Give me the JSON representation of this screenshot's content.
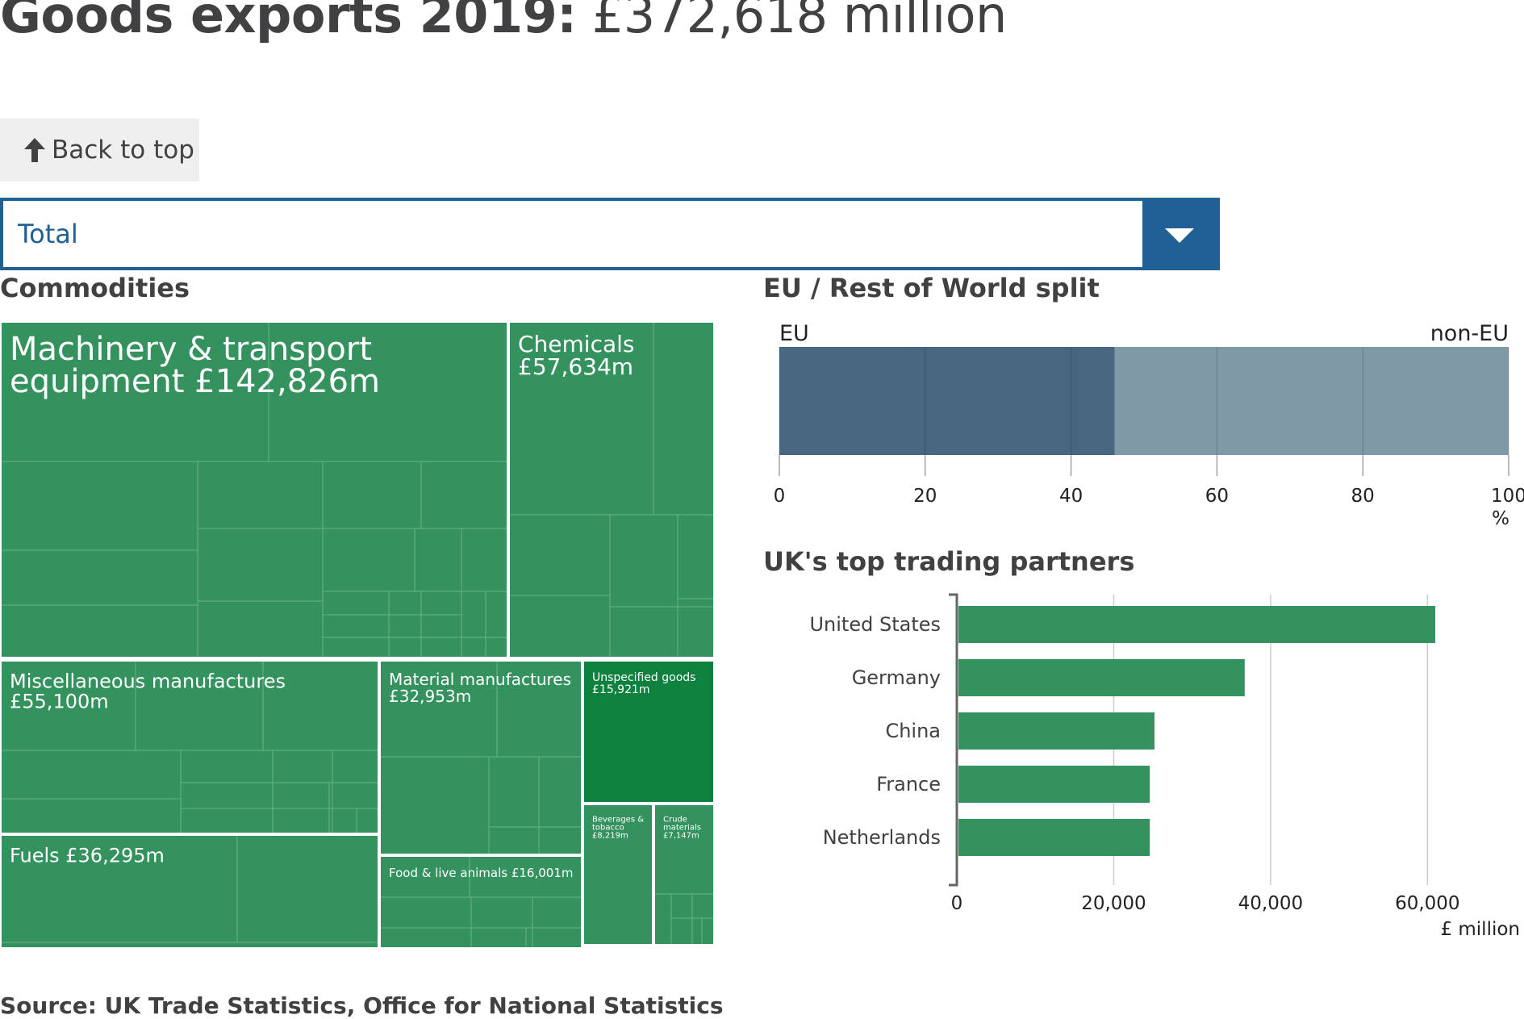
{
  "header": {
    "title_strong": "Goods exports 2019:",
    "title_value": "£372,618 million"
  },
  "back_to_top": {
    "label": "Back to top",
    "icon": "arrow-up-icon"
  },
  "dropdown": {
    "selected": "Total",
    "icon": "chevron-down-icon"
  },
  "colors": {
    "treemap_fill": "#34925e",
    "treemap_highlight": "#0f813f",
    "eu": "#46677f",
    "non_eu": "#7f9aa6",
    "partner_bar": "#34925e",
    "dropdown_accent": "#206095"
  },
  "commodities": {
    "title": "Commodities",
    "chart_data": {
      "type": "treemap",
      "items": [
        {
          "name": "Machinery & transport equipment",
          "label": "Machinery & transport equipment £142,826m",
          "value": 142826
        },
        {
          "name": "Chemicals",
          "label": "Chemicals £57,634m",
          "value": 57634
        },
        {
          "name": "Miscellaneous manufactures",
          "label": "Miscellaneous manufactures £55,100m",
          "value": 55100
        },
        {
          "name": "Fuels",
          "label": "Fuels £36,295m",
          "value": 36295
        },
        {
          "name": "Material manufactures",
          "label": "Material manufactures £32,953m",
          "value": 32953
        },
        {
          "name": "Food & live animals",
          "label": "Food & live animals £16,001m",
          "value": 16001
        },
        {
          "name": "Unspecified goods",
          "label": "Unspecified goods £15,921m",
          "value": 15921
        },
        {
          "name": "Beverages & tobacco",
          "label": "Beverages & tobacco £8,219m",
          "value": 8219
        },
        {
          "name": "Crude materials",
          "label": "Crude materials £7,147m",
          "value": 7147
        }
      ]
    }
  },
  "eu_split": {
    "title": "EU / Rest of World split",
    "chart_data": {
      "type": "bar",
      "orientation": "horizontal-stacked",
      "series": [
        {
          "name": "EU",
          "value": 46
        },
        {
          "name": "non-EU",
          "value": 54
        }
      ],
      "xlim": [
        0,
        100
      ],
      "ticks": [
        "0",
        "20",
        "40",
        "60",
        "80",
        "100"
      ],
      "xlabel": "%",
      "grid": true
    }
  },
  "partners": {
    "title": "UK's top trading partners",
    "chart_data": {
      "type": "bar",
      "orientation": "horizontal",
      "categories": [
        "United States",
        "Germany",
        "China",
        "France",
        "Netherlands"
      ],
      "values": [
        61000,
        36700,
        25200,
        24600,
        24600
      ],
      "xlim": [
        0,
        72000
      ],
      "ticks": [
        "0",
        "20,000",
        "40,000",
        "60,000"
      ],
      "xlabel": "£ million",
      "grid": true
    }
  },
  "source": "Source: UK Trade Statistics, Office for National Statistics"
}
